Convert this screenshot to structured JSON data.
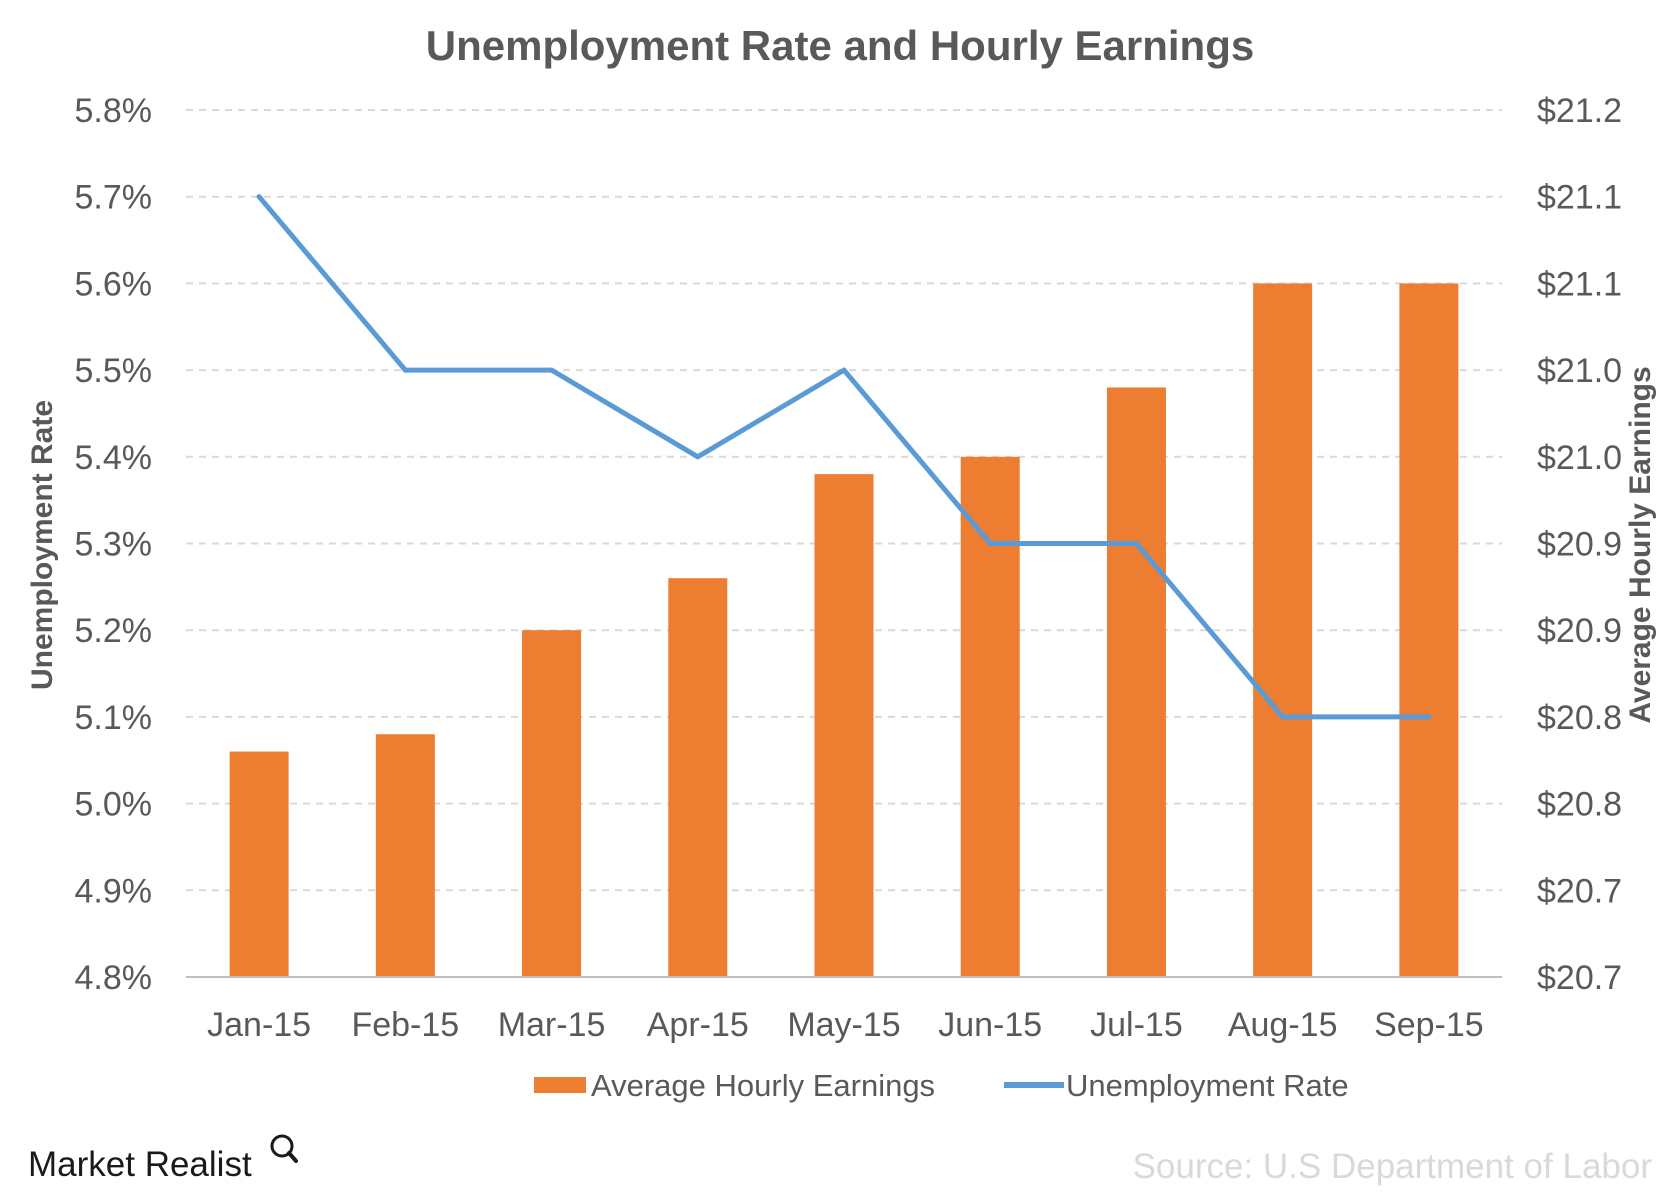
{
  "chart_data": {
    "type": "bar",
    "title": "Unemployment Rate and Hourly Earnings",
    "categories": [
      "Jan-15",
      "Feb-15",
      "Mar-15",
      "Apr-15",
      "May-15",
      "Jun-15",
      "Jul-15",
      "Aug-15",
      "Sep-15"
    ],
    "series": [
      {
        "name": "Average Hourly Earnings",
        "type": "bar",
        "axis": "right",
        "color": "#ed7d31",
        "values": [
          20.78,
          20.79,
          20.85,
          20.88,
          20.94,
          20.95,
          20.99,
          21.05,
          21.05
        ]
      },
      {
        "name": "Unemployment Rate",
        "type": "line",
        "axis": "left",
        "color": "#5b9bd5",
        "values": [
          5.7,
          5.5,
          5.5,
          5.4,
          5.5,
          5.3,
          5.3,
          5.1,
          5.1
        ]
      }
    ],
    "y_left": {
      "label": "Unemployment Rate",
      "range": [
        4.8,
        5.8
      ],
      "tick_labels": [
        "4.8%",
        "4.9%",
        "5.0%",
        "5.1%",
        "5.2%",
        "5.3%",
        "5.4%",
        "5.5%",
        "5.6%",
        "5.7%",
        "5.8%"
      ]
    },
    "y_right": {
      "label": "Average Hourly Earnings",
      "range": [
        20.65,
        21.15
      ],
      "tick_labels": [
        "$20.7",
        "$20.7",
        "$20.8",
        "$20.8",
        "$20.9",
        "$20.9",
        "$21.0",
        "$21.0",
        "$21.1",
        "$21.1",
        "$21.2"
      ]
    },
    "grid": true,
    "legend_position": "bottom"
  },
  "branding": {
    "logo_text": "Market Realist",
    "source": "Source: U.S Department of Labor"
  },
  "colors": {
    "gridline": "#d9d9d9",
    "axis_line": "#bfbfbf",
    "text": "#595959",
    "source_text": "#d9d9d9"
  }
}
